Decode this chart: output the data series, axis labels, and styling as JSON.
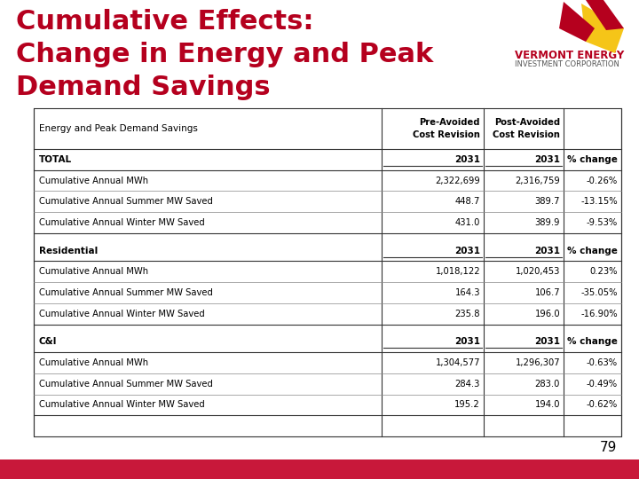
{
  "title_line1": "Cumulative Effects:",
  "title_line2": "Change in Energy and Peak",
  "title_line3": "Demand Savings",
  "title_color": "#B5001E",
  "page_number": "79",
  "bg_color": "#FFFFFF",
  "bottom_bar_color": "#C8183A",
  "logo_text1": "VERMONT ENERGY",
  "logo_text2": "INVESTMENT CORPORATION",
  "table": {
    "sections": [
      {
        "header": [
          "TOTAL",
          "2031",
          "2031",
          "% change"
        ],
        "rows": [
          [
            "Cumulative Annual MWh",
            "2,322,699",
            "2,316,759",
            "-0.26%"
          ],
          [
            "Cumulative Annual Summer MW Saved",
            "448.7",
            "389.7",
            "-13.15%"
          ],
          [
            "Cumulative Annual Winter MW Saved",
            "431.0",
            "389.9",
            "-9.53%"
          ]
        ]
      },
      {
        "header": [
          "Residential",
          "2031",
          "2031",
          "% change"
        ],
        "rows": [
          [
            "Cumulative Annual MWh",
            "1,018,122",
            "1,020,453",
            "0.23%"
          ],
          [
            "Cumulative Annual Summer MW Saved",
            "164.3",
            "106.7",
            "-35.05%"
          ],
          [
            "Cumulative Annual Winter MW Saved",
            "235.8",
            "196.0",
            "-16.90%"
          ]
        ]
      },
      {
        "header": [
          "C&I",
          "2031",
          "2031",
          "% change"
        ],
        "rows": [
          [
            "Cumulative Annual MWh",
            "1,304,577",
            "1,296,307",
            "-0.63%"
          ],
          [
            "Cumulative Annual Summer MW Saved",
            "284.3",
            "283.0",
            "-0.49%"
          ],
          [
            "Cumulative Annual Winter MW Saved",
            "195.2",
            "194.0",
            "-0.62%"
          ]
        ]
      }
    ]
  }
}
